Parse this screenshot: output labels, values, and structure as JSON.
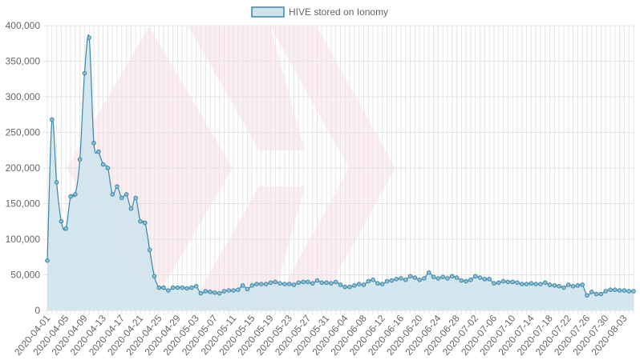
{
  "chart_data": {
    "type": "area",
    "series": [
      {
        "name": "HIVE stored on Ionomy",
        "fill_color": "#cfe3ec",
        "line_color": "#3a87a8",
        "values": [
          70000,
          268000,
          180000,
          125000,
          115000,
          160000,
          163000,
          212000,
          333000,
          383000,
          235000,
          223000,
          205000,
          200000,
          163000,
          174000,
          158000,
          163000,
          143000,
          158000,
          125000,
          123000,
          85000,
          48000,
          32000,
          32000,
          28000,
          32000,
          32000,
          32000,
          31000,
          32000,
          34000,
          24000,
          27000,
          26000,
          25000,
          24000,
          27000,
          28000,
          28000,
          29000,
          35000,
          30000,
          35000,
          37000,
          37000,
          37000,
          39000,
          40000,
          38000,
          37000,
          37000,
          36000,
          39000,
          40000,
          40000,
          38000,
          42000,
          39000,
          39000,
          38000,
          40000,
          36000,
          33000,
          33000,
          35000,
          37000,
          36000,
          41000,
          43000,
          38000,
          37000,
          41000,
          42000,
          44000,
          45000,
          43000,
          48000,
          46000,
          43000,
          45000,
          53000,
          47000,
          45000,
          47000,
          45000,
          48000,
          46000,
          42000,
          41000,
          43000,
          48000,
          46000,
          44000,
          44000,
          38000,
          39000,
          41000,
          40000,
          40000,
          39000,
          37000,
          37000,
          38000,
          37000,
          37000,
          39000,
          36000,
          35000,
          34000,
          32000,
          36000,
          34000,
          35000,
          36000,
          21000,
          26000,
          23000,
          23000,
          27000,
          29000,
          29000,
          28000,
          28000,
          27000,
          27000
        ]
      }
    ],
    "x_tick_labels": [
      "2020-04-01",
      "2020-04-05",
      "2020-04-09",
      "2020-04-13",
      "2020-04-17",
      "2020-04-21",
      "2020-04-25",
      "2020-04-29",
      "2020-05-03",
      "2020-05-07",
      "2020-05-11",
      "2020-05-15",
      "2020-05-19",
      "2020-05-23",
      "2020-05-27",
      "2020-05-31",
      "2020-06-04",
      "2020-06-08",
      "2020-06-12",
      "2020-06-16",
      "2020-06-20",
      "2020-06-24",
      "2020-06-28",
      "2020-07-02",
      "2020-07-06",
      "2020-07-10",
      "2020-07-14",
      "2020-07-18",
      "2020-07-22",
      "2020-07-26",
      "2020-07-30",
      "2020-08-03"
    ],
    "x_range": [
      "2020-04-01",
      "2020-08-06"
    ],
    "y_tick_labels": [
      "0",
      "50,000",
      "100,000",
      "150,000",
      "200,000",
      "250,000",
      "300,000",
      "350,000",
      "400,000"
    ],
    "ylim": [
      0,
      400000
    ],
    "grid": true,
    "legend_position": "top-center",
    "watermark": "hive-logo"
  }
}
